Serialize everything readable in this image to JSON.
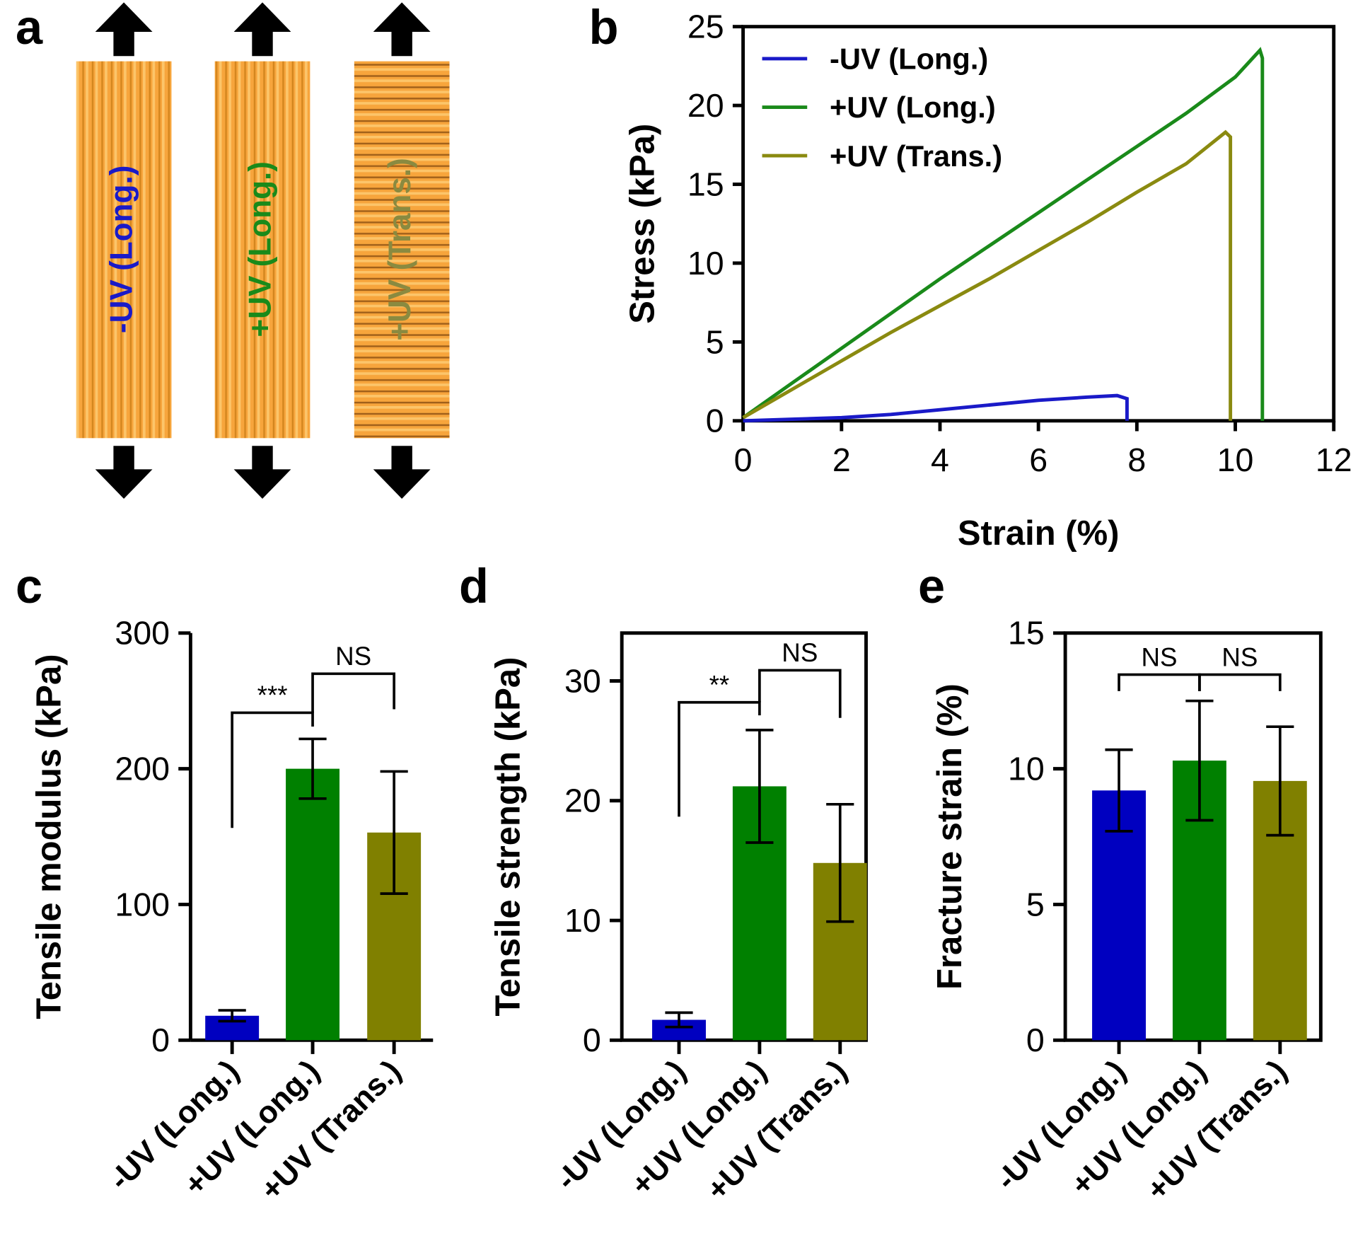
{
  "diagram": {
    "panel_label": "a",
    "strips": [
      "-UV (Long.)",
      "+UV (Long.)",
      "+UV (Trans.)"
    ]
  },
  "chart_data": [
    {
      "type": "line",
      "panel_label": "b",
      "x_label": "Strain (%)",
      "y_label": "Stress (kPa)",
      "xlim": [
        0,
        12
      ],
      "xticks": [
        0,
        2,
        4,
        6,
        8,
        10,
        12
      ],
      "ylim": [
        0,
        25
      ],
      "yticks": [
        0,
        5,
        10,
        15,
        20,
        25
      ],
      "legend": "upper-left",
      "series": [
        {
          "name": "-UV (Long.)",
          "color": "#1a1ac8",
          "x": [
            0,
            1,
            2,
            3,
            4,
            5,
            6,
            7,
            7.6,
            7.8,
            7.8
          ],
          "values": [
            0,
            0.1,
            0.2,
            0.4,
            0.7,
            1.0,
            1.3,
            1.5,
            1.6,
            1.4,
            0
          ]
        },
        {
          "name": "+UV (Long.)",
          "color": "#1a8a1a",
          "x": [
            0,
            1,
            2,
            3,
            4,
            5,
            6,
            7,
            8,
            9,
            10,
            10.5,
            10.55,
            10.55
          ],
          "values": [
            0.2,
            2.4,
            4.6,
            6.8,
            9.0,
            11.1,
            13.2,
            15.3,
            17.4,
            19.5,
            21.8,
            23.5,
            23.0,
            0
          ]
        },
        {
          "name": "+UV (Trans.)",
          "color": "#8a8a10",
          "x": [
            0,
            1,
            2,
            3,
            4,
            5,
            6,
            7,
            8,
            9,
            9.8,
            9.9,
            9.9
          ],
          "values": [
            0.2,
            2.0,
            3.8,
            5.6,
            7.3,
            9.0,
            10.8,
            12.6,
            14.5,
            16.3,
            18.3,
            18.0,
            0
          ]
        }
      ]
    },
    {
      "type": "bar",
      "panel_label": "c",
      "y_label": "Tensile modulus (kPa)",
      "categories": [
        "-UV (Long.)",
        "+UV (Long.)",
        "+UV (Trans.)"
      ],
      "values": [
        18,
        200,
        153
      ],
      "errors": [
        4,
        22,
        45
      ],
      "colors": [
        "#0000c0",
        "#008000",
        "#808000"
      ],
      "ylim": [
        0,
        300
      ],
      "yticks": [
        0,
        100,
        200,
        300
      ],
      "frame": false,
      "annotations": [
        "***",
        "NS"
      ]
    },
    {
      "type": "bar",
      "panel_label": "d",
      "y_label": "Tensile strength (kPa)",
      "categories": [
        "-UV (Long.)",
        "+UV (Long.)",
        "+UV (Trans.)"
      ],
      "values": [
        1.7,
        21.2,
        14.8
      ],
      "errors": [
        0.6,
        4.7,
        4.9
      ],
      "colors": [
        "#0000c0",
        "#008000",
        "#808000"
      ],
      "ylim": [
        0,
        34
      ],
      "yticks": [
        0,
        10,
        20,
        30
      ],
      "frame": true,
      "annotations": [
        "**",
        "NS"
      ]
    },
    {
      "type": "bar",
      "panel_label": "e",
      "y_label": "Fracture strain (%)",
      "categories": [
        "-UV (Long.)",
        "+UV (Long.)",
        "+UV (Trans.)"
      ],
      "values": [
        9.2,
        10.3,
        9.55
      ],
      "errors": [
        1.5,
        2.2,
        2.0
      ],
      "colors": [
        "#0000c0",
        "#008000",
        "#808000"
      ],
      "ylim": [
        0,
        15
      ],
      "yticks": [
        0,
        5,
        10,
        15
      ],
      "frame": true,
      "annotations": [
        "NS",
        "NS"
      ]
    }
  ]
}
